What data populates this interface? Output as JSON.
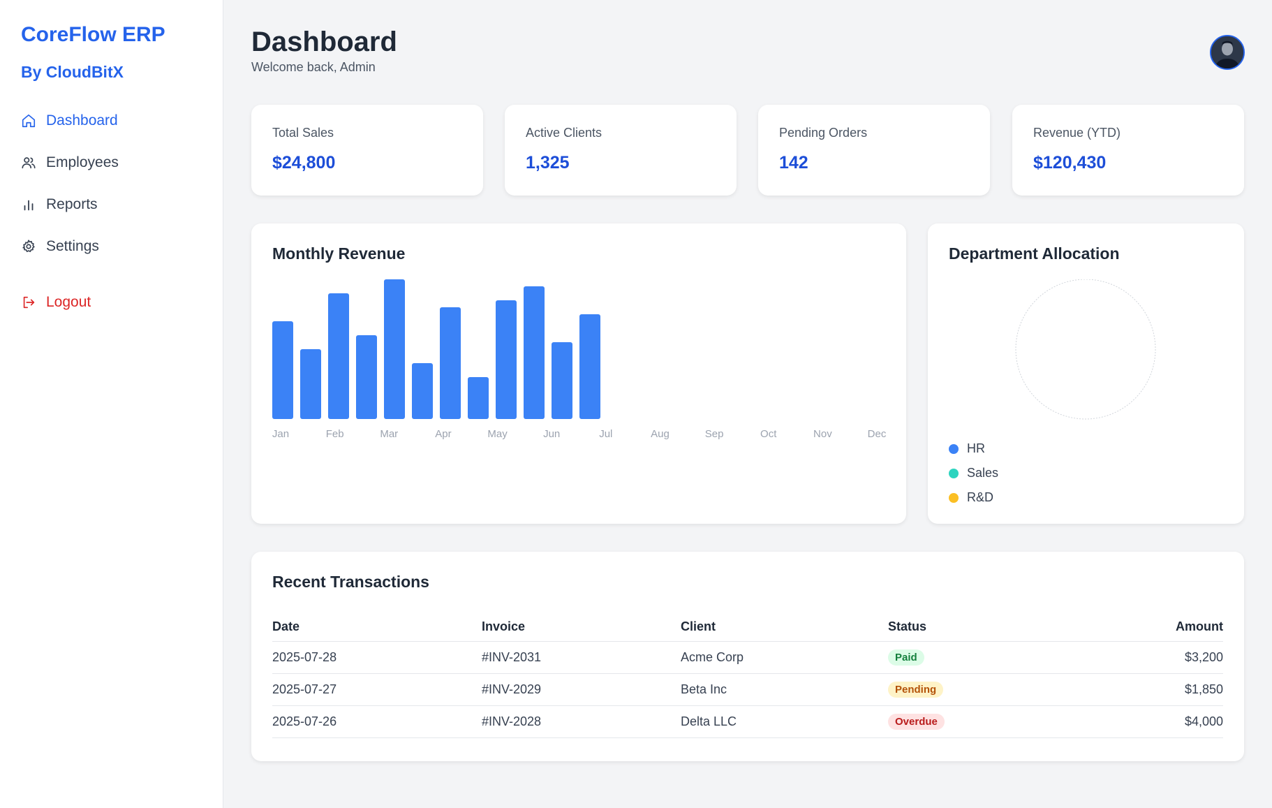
{
  "sidebar": {
    "brand": "CoreFlow ERP",
    "brand_sub": "By CloudBitX",
    "items": [
      {
        "label": "Dashboard",
        "icon": "home-icon",
        "active": true
      },
      {
        "label": "Employees",
        "icon": "users-icon"
      },
      {
        "label": "Reports",
        "icon": "bar-chart-icon"
      },
      {
        "label": "Settings",
        "icon": "gear-icon"
      }
    ],
    "logout": {
      "label": "Logout",
      "icon": "logout-icon"
    }
  },
  "header": {
    "title": "Dashboard",
    "subtitle": "Welcome back, Admin"
  },
  "kpis": [
    {
      "label": "Total Sales",
      "value": "$24,800"
    },
    {
      "label": "Active Clients",
      "value": "1,325"
    },
    {
      "label": "Pending Orders",
      "value": "142"
    },
    {
      "label": "Revenue (YTD)",
      "value": "$120,430"
    }
  ],
  "chart_data": {
    "type": "bar",
    "title": "Monthly Revenue",
    "categories": [
      "Jan",
      "Feb",
      "Mar",
      "Apr",
      "May",
      "Jun",
      "Jul",
      "Aug",
      "Sep",
      "Oct",
      "Nov",
      "Dec"
    ],
    "bar_values": [
      70,
      50,
      90,
      60,
      100,
      40,
      80,
      30,
      85,
      95,
      55,
      75
    ],
    "ylim": [
      0,
      100
    ],
    "color": "#3b82f6",
    "grid": false
  },
  "department": {
    "title": "Department Allocation",
    "legend": [
      {
        "label": "HR",
        "color": "#3b82f6"
      },
      {
        "label": "Sales",
        "color": "#2dd4bf"
      },
      {
        "label": "R&D",
        "color": "#fbbf24"
      }
    ]
  },
  "transactions": {
    "title": "Recent Transactions",
    "columns": [
      "Date",
      "Invoice",
      "Client",
      "Status",
      "Amount"
    ],
    "rows": [
      {
        "date": "2025-07-28",
        "invoice": "#INV-2031",
        "client": "Acme Corp",
        "status": "Paid",
        "status_type": "paid",
        "amount": "$3,200"
      },
      {
        "date": "2025-07-27",
        "invoice": "#INV-2029",
        "client": "Beta Inc",
        "status": "Pending",
        "status_type": "pending",
        "amount": "$1,850"
      },
      {
        "date": "2025-07-26",
        "invoice": "#INV-2028",
        "client": "Delta LLC",
        "status": "Overdue",
        "status_type": "overdue",
        "amount": "$4,000"
      }
    ]
  },
  "colors": {
    "accent": "#2563eb",
    "danger": "#dc2626"
  }
}
